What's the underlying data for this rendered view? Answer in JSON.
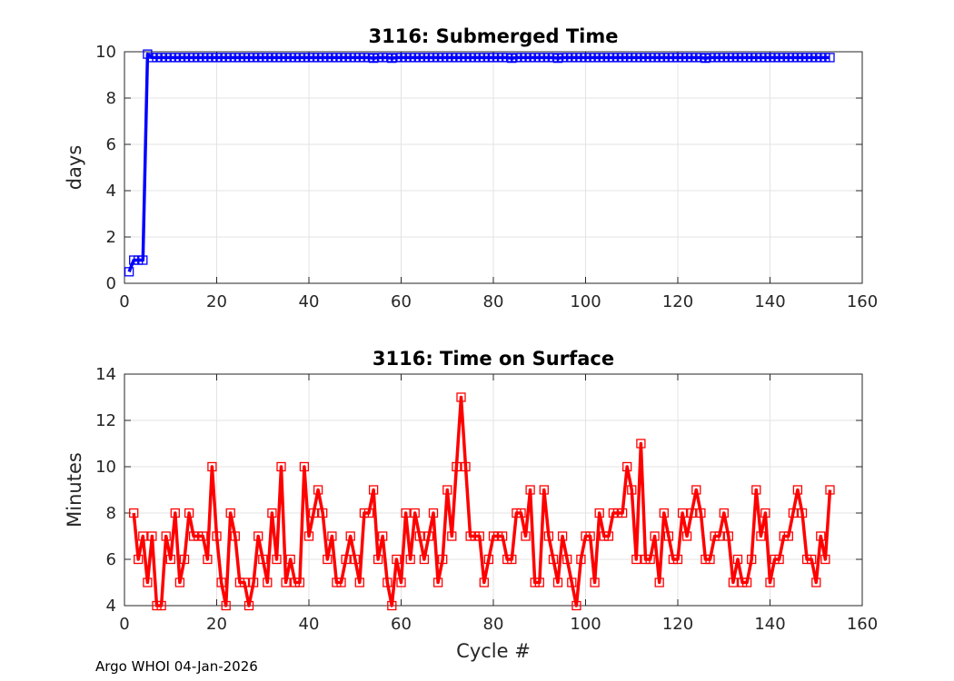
{
  "footer": "Argo WHOI 04-Jan-2026",
  "chart_data": [
    {
      "type": "line",
      "title": "3116: Submerged Time",
      "xlabel": "",
      "ylabel": "days",
      "xlim": [
        0,
        160
      ],
      "ylim": [
        0,
        10
      ],
      "xticks": [
        0,
        20,
        40,
        60,
        80,
        100,
        120,
        140,
        160
      ],
      "yticks": [
        0,
        2,
        4,
        6,
        8,
        10
      ],
      "grid": true,
      "color": "#0000ff",
      "series": [
        {
          "name": "submerged",
          "x_start": 1,
          "values": [
            0.5,
            1.0,
            1.0,
            1.0,
            9.9,
            9.75,
            9.75,
            9.75,
            9.75,
            9.75,
            9.75,
            9.75,
            9.75,
            9.75,
            9.75,
            9.75,
            9.75,
            9.75,
            9.75,
            9.75,
            9.75,
            9.75,
            9.75,
            9.75,
            9.75,
            9.75,
            9.75,
            9.75,
            9.75,
            9.75,
            9.75,
            9.75,
            9.75,
            9.75,
            9.75,
            9.75,
            9.75,
            9.75,
            9.75,
            9.75,
            9.75,
            9.75,
            9.75,
            9.75,
            9.75,
            9.75,
            9.75,
            9.75,
            9.75,
            9.75,
            9.75,
            9.75,
            9.75,
            9.72,
            9.75,
            9.75,
            9.75,
            9.72,
            9.75,
            9.75,
            9.75,
            9.75,
            9.75,
            9.75,
            9.75,
            9.75,
            9.75,
            9.75,
            9.75,
            9.75,
            9.75,
            9.75,
            9.75,
            9.75,
            9.75,
            9.75,
            9.75,
            9.75,
            9.75,
            9.75,
            9.75,
            9.75,
            9.75,
            9.72,
            9.75,
            9.75,
            9.75,
            9.75,
            9.75,
            9.75,
            9.75,
            9.75,
            9.75,
            9.72,
            9.75,
            9.75,
            9.75,
            9.75,
            9.75,
            9.75,
            9.75,
            9.75,
            9.75,
            9.75,
            9.75,
            9.75,
            9.75,
            9.75,
            9.75,
            9.75,
            9.75,
            9.75,
            9.75,
            9.75,
            9.75,
            9.75,
            9.75,
            9.75,
            9.75,
            9.75,
            9.75,
            9.75,
            9.75,
            9.75,
            9.75,
            9.72,
            9.75,
            9.75,
            9.75,
            9.75,
            9.75,
            9.75,
            9.75,
            9.75,
            9.75,
            9.75,
            9.75,
            9.75,
            9.75,
            9.75,
            9.75,
            9.75,
            9.75,
            9.75,
            9.75,
            9.75,
            9.75,
            9.75,
            9.75,
            9.75,
            9.75,
            9.75,
            9.75
          ]
        }
      ]
    },
    {
      "type": "line",
      "title": "3116: Time on Surface",
      "xlabel": "Cycle #",
      "ylabel": "Minutes",
      "xlim": [
        0,
        160
      ],
      "ylim": [
        4,
        14
      ],
      "xticks": [
        0,
        20,
        40,
        60,
        80,
        100,
        120,
        140,
        160
      ],
      "yticks": [
        4,
        6,
        8,
        10,
        12,
        14
      ],
      "grid": true,
      "color": "#ff0000",
      "series": [
        {
          "name": "surface",
          "x_start": 2,
          "values": [
            8,
            6,
            7,
            5,
            7,
            4,
            4,
            7,
            6,
            8,
            5,
            6,
            8,
            7,
            7,
            7,
            6,
            10,
            7,
            5,
            4,
            8,
            7,
            5,
            5,
            4,
            5,
            7,
            6,
            5,
            8,
            6,
            10,
            5,
            6,
            5,
            5,
            10,
            7,
            8,
            9,
            8,
            6,
            7,
            5,
            5,
            6,
            7,
            6,
            5,
            8,
            8,
            9,
            6,
            7,
            5,
            4,
            6,
            5,
            8,
            6,
            8,
            7,
            6,
            7,
            8,
            5,
            6,
            9,
            7,
            10,
            13,
            10,
            7,
            7,
            7,
            5,
            6,
            7,
            7,
            7,
            6,
            6,
            8,
            8,
            7,
            9,
            5,
            5,
            9,
            7,
            6,
            5,
            7,
            6,
            5,
            4,
            6,
            7,
            7,
            5,
            8,
            7,
            7,
            8,
            8,
            8,
            10,
            9,
            6,
            11,
            6,
            6,
            7,
            5,
            8,
            7,
            6,
            6,
            8,
            7,
            8,
            9,
            8,
            6,
            6,
            7,
            7,
            8,
            7,
            5,
            6,
            5,
            5,
            6,
            9,
            7,
            8,
            5,
            6,
            6,
            7,
            7,
            8,
            9,
            8,
            6,
            6,
            5,
            7,
            6,
            9
          ]
        }
      ]
    }
  ]
}
